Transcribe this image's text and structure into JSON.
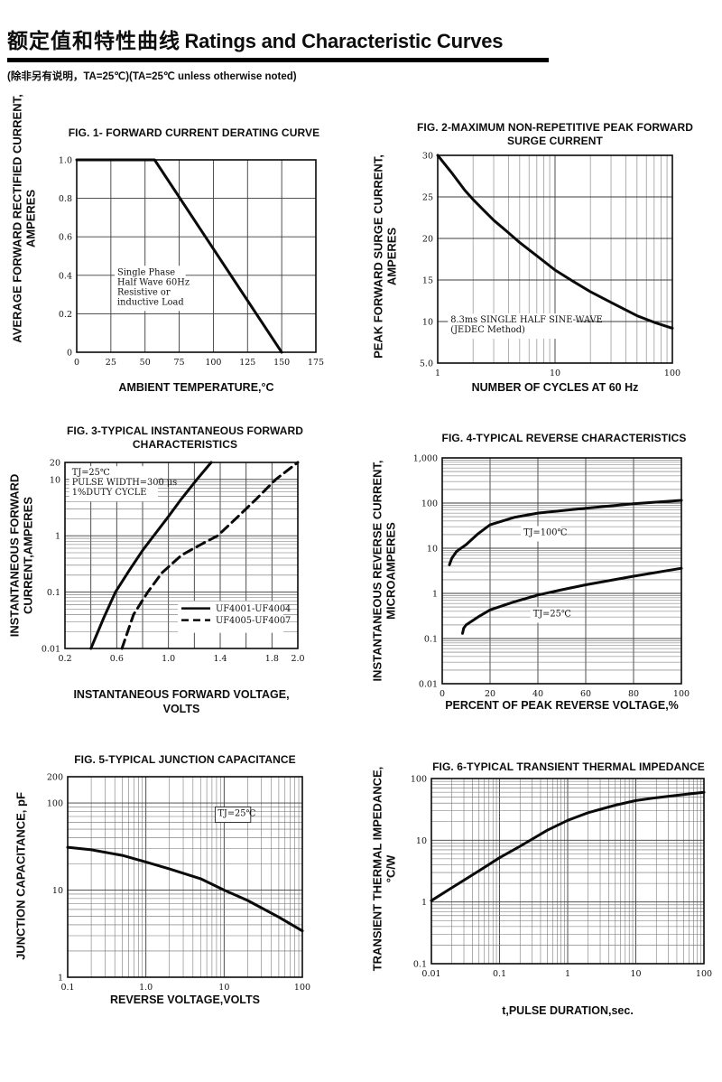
{
  "page": {
    "title_zh": "额定值和特性曲线",
    "title_en": "Ratings and Characteristic Curves",
    "subtitle": "(除非另有说明，TA=25℃)(TA=25℃  unless otherwise noted)"
  },
  "chart_data": [
    {
      "id": "fig1",
      "type": "line",
      "title": "FIG. 1- FORWARD CURRENT DERATING CURVE",
      "ylabel": "AVERAGE FORWARD RECTIFIED CURRENT,\nAMPERES",
      "xlabel": "AMBIENT TEMPERATURE,°C",
      "x": {
        "scale": "linear",
        "min": 0,
        "max": 175,
        "grid": [
          25,
          50,
          75,
          100,
          125,
          150
        ],
        "ticks": [
          {
            "v": 0,
            "label": "0"
          },
          {
            "v": 25,
            "label": "25"
          },
          {
            "v": 50,
            "label": "50"
          },
          {
            "v": 75,
            "label": "75"
          },
          {
            "v": 100,
            "label": "100"
          },
          {
            "v": 125,
            "label": "125"
          },
          {
            "v": 150,
            "label": "150"
          },
          {
            "v": 175,
            "label": "175"
          }
        ]
      },
      "y": {
        "scale": "linear",
        "min": 0,
        "max": 1.0,
        "grid": [
          0.2,
          0.4,
          0.6,
          0.8
        ],
        "ticks": [
          {
            "v": 0,
            "label": "0"
          },
          {
            "v": 0.2,
            "label": "0.2"
          },
          {
            "v": 0.4,
            "label": "0.4"
          },
          {
            "v": 0.6,
            "label": "0.6"
          },
          {
            "v": 0.8,
            "label": "0.8"
          },
          {
            "v": 1.0,
            "label": "1.0"
          }
        ]
      },
      "series": [
        {
          "name": "derating-curve",
          "style": "solid",
          "x": [
            0,
            57,
            150
          ],
          "y": [
            1.0,
            1.0,
            0
          ]
        }
      ],
      "annotations": [
        {
          "text": "Single Phase\nHalf Wave 60Hz\nResistive or\ninductive Load",
          "fx": 0.17,
          "fy": 0.56,
          "boxed": false
        }
      ]
    },
    {
      "id": "fig2",
      "type": "line",
      "title": "FIG. 2-MAXIMUM NON-REPETITIVE PEAK FORWARD\nSURGE CURRENT",
      "ylabel": "PEAK FORWARD SURGE CURRENT,\nAMPERES",
      "xlabel": "NUMBER OF CYCLES AT 60 Hz",
      "x": {
        "scale": "log",
        "min": 1,
        "max": 100,
        "ticks": [
          {
            "v": 1,
            "label": "1"
          },
          {
            "v": 10,
            "label": "10"
          },
          {
            "v": 100,
            "label": "100"
          }
        ]
      },
      "y": {
        "scale": "linear",
        "min": 5,
        "max": 30,
        "grid": [
          10,
          15,
          20,
          25
        ],
        "ticks": [
          {
            "v": 5,
            "label": "5.0"
          },
          {
            "v": 10,
            "label": "10"
          },
          {
            "v": 15,
            "label": "15"
          },
          {
            "v": 20,
            "label": "20"
          },
          {
            "v": 25,
            "label": "25"
          },
          {
            "v": 30,
            "label": "30"
          }
        ]
      },
      "series": [
        {
          "name": "surge-current",
          "style": "solid",
          "x": [
            1,
            1.3,
            1.7,
            2,
            2.5,
            3,
            4,
            5,
            7,
            10,
            14,
            20,
            30,
            50,
            70,
            100
          ],
          "y": [
            30,
            28,
            25.8,
            24.7,
            23.3,
            22.2,
            20.7,
            19.5,
            17.9,
            16.2,
            14.9,
            13.6,
            12.3,
            10.7,
            9.9,
            9.2
          ]
        }
      ],
      "annotations": [
        {
          "text": "8.3ms SINGLE HALF SINE-WAVE\n(JEDEC Method)",
          "fx": 0.055,
          "fy": 0.77,
          "boxed": false
        }
      ]
    },
    {
      "id": "fig3",
      "type": "line",
      "title": "FIG. 3-TYPICAL INSTANTANEOUS FORWARD\nCHARACTERISTICS",
      "ylabel": "INSTANTANEOUS FORWARD\nCURRENT,AMPERES",
      "xlabel": "INSTANTANEOUS FORWARD VOLTAGE,\nVOLTS",
      "x": {
        "scale": "linear",
        "min": 0.2,
        "max": 2.0,
        "grid": [
          0.4,
          0.6,
          0.8,
          1.0,
          1.2,
          1.4,
          1.6,
          1.8
        ],
        "ticks": [
          {
            "v": 0.2,
            "label": "0.2"
          },
          {
            "v": 0.6,
            "label": "0.6"
          },
          {
            "v": 1.0,
            "label": "1.0"
          },
          {
            "v": 1.4,
            "label": "1.4"
          },
          {
            "v": 1.8,
            "label": "1.8"
          },
          {
            "v": 2.0,
            "label": "2.0"
          }
        ]
      },
      "y": {
        "scale": "log",
        "min": 0.01,
        "max": 20,
        "ticks": [
          {
            "v": 0.01,
            "label": "0.01"
          },
          {
            "v": 0.1,
            "label": "0.1"
          },
          {
            "v": 1,
            "label": "1"
          },
          {
            "v": 10,
            "label": "10"
          },
          {
            "v": 20,
            "label": "20"
          }
        ]
      },
      "series": [
        {
          "name": "UF4001-UF4004",
          "style": "solid",
          "x": [
            0.4,
            0.5,
            0.59,
            0.7,
            0.8,
            0.9,
            1.0,
            1.1,
            1.22,
            1.33
          ],
          "y": [
            0.01,
            0.035,
            0.1,
            0.25,
            0.55,
            1.1,
            2.2,
            4.5,
            10,
            20
          ]
        },
        {
          "name": "UF4005-UF4007",
          "style": "dashed",
          "x": [
            0.64,
            0.73,
            0.84,
            0.95,
            1.1,
            1.25,
            1.38,
            1.52,
            1.68,
            1.83,
            2.0
          ],
          "y": [
            0.01,
            0.04,
            0.1,
            0.22,
            0.45,
            0.7,
            1.0,
            2.0,
            4.5,
            10,
            20
          ]
        }
      ],
      "annotations": [
        {
          "text": "TJ=25℃\nPULSE WIDTH=300 μs\n1%DUTY CYCLE",
          "fx": 0.03,
          "fy": 0.03,
          "boxed": false
        }
      ],
      "legend": {
        "fx": 0.5,
        "fy": 0.77,
        "items": [
          {
            "style": "solid",
            "label": "UF4001-UF4004"
          },
          {
            "style": "dashed",
            "label": "UF4005-UF4007"
          }
        ]
      }
    },
    {
      "id": "fig4",
      "type": "line",
      "title": "FIG. 4-TYPICAL REVERSE CHARACTERISTICS",
      "ylabel": "INSTANTANEOUS REVERSE CURRENT,\nMICROAMPERES",
      "xlabel": "PERCENT OF PEAK REVERSE VOLTAGE,%",
      "x": {
        "scale": "linear",
        "min": 0,
        "max": 100,
        "grid": [
          20,
          40,
          60,
          80
        ],
        "ticks": [
          {
            "v": 0,
            "label": "0"
          },
          {
            "v": 20,
            "label": "20"
          },
          {
            "v": 40,
            "label": "40"
          },
          {
            "v": 60,
            "label": "60"
          },
          {
            "v": 80,
            "label": "80"
          },
          {
            "v": 100,
            "label": "100"
          }
        ]
      },
      "y": {
        "scale": "log",
        "min": 0.01,
        "max": 1000,
        "ticks": [
          {
            "v": 0.01,
            "label": "0.01"
          },
          {
            "v": 0.1,
            "label": "0.1"
          },
          {
            "v": 1,
            "label": "1"
          },
          {
            "v": 10,
            "label": "10"
          },
          {
            "v": 100,
            "label": "100"
          },
          {
            "v": 1000,
            "label": "1,000"
          }
        ]
      },
      "series": [
        {
          "name": "TJ=100C",
          "style": "solid",
          "x": [
            3,
            4,
            6,
            10,
            15,
            20,
            30,
            40,
            60,
            80,
            100
          ],
          "y": [
            4.3,
            6,
            8.5,
            12,
            21,
            33,
            48,
            60,
            77,
            97,
            115
          ]
        },
        {
          "name": "TJ=25C",
          "style": "solid",
          "x": [
            8.5,
            9,
            10,
            15,
            20,
            30,
            40,
            50,
            60,
            80,
            100
          ],
          "y": [
            0.13,
            0.17,
            0.2,
            0.3,
            0.43,
            0.65,
            0.92,
            1.2,
            1.55,
            2.4,
            3.6
          ]
        }
      ],
      "annotations": [
        {
          "text": "TJ=100℃",
          "fx": 0.34,
          "fy": 0.31,
          "boxed": false
        },
        {
          "text": "TJ=25℃",
          "fx": 0.38,
          "fy": 0.67,
          "boxed": false
        }
      ]
    },
    {
      "id": "fig5",
      "type": "line",
      "title": "FIG. 5-TYPICAL JUNCTION CAPACITANCE",
      "ylabel": "JUNCTION CAPACITANCE, pF",
      "xlabel": "REVERSE VOLTAGE,VOLTS",
      "x": {
        "scale": "log",
        "min": 0.1,
        "max": 100,
        "ticks": [
          {
            "v": 0.1,
            "label": "0.1"
          },
          {
            "v": 1,
            "label": "1.0"
          },
          {
            "v": 10,
            "label": "10"
          },
          {
            "v": 100,
            "label": "100"
          }
        ]
      },
      "y": {
        "scale": "log",
        "min": 1,
        "max": 200,
        "ticks": [
          {
            "v": 1,
            "label": "1"
          },
          {
            "v": 10,
            "label": "10"
          },
          {
            "v": 100,
            "label": "100"
          },
          {
            "v": 200,
            "label": "200"
          }
        ]
      },
      "series": [
        {
          "name": "junction-capacitance",
          "style": "solid",
          "x": [
            0.1,
            0.2,
            0.5,
            1,
            2,
            5,
            10,
            20,
            50,
            100
          ],
          "y": [
            31,
            29,
            25,
            21,
            17.5,
            13.5,
            10,
            7.6,
            4.9,
            3.4
          ]
        }
      ],
      "annotations": [
        {
          "text": "TJ=25℃",
          "fx": 0.64,
          "fy": 0.16,
          "boxed": true
        }
      ]
    },
    {
      "id": "fig6",
      "type": "line",
      "title": "FIG. 6-TYPICAL TRANSIENT THERMAL IMPEDANCE",
      "ylabel": "TRANSIENT THERMAL IMPEDANCE,\n°C/W",
      "xlabel": "t,PULSE DURATION,sec.",
      "x": {
        "scale": "log",
        "min": 0.01,
        "max": 100,
        "ticks": [
          {
            "v": 0.01,
            "label": "0.01"
          },
          {
            "v": 0.1,
            "label": "0.1"
          },
          {
            "v": 1,
            "label": "1"
          },
          {
            "v": 10,
            "label": "10"
          },
          {
            "v": 100,
            "label": "100"
          }
        ]
      },
      "y": {
        "scale": "log",
        "min": 0.1,
        "max": 100,
        "ticks": [
          {
            "v": 0.1,
            "label": "0.1"
          },
          {
            "v": 1,
            "label": "1"
          },
          {
            "v": 10,
            "label": "10"
          },
          {
            "v": 100,
            "label": "100"
          }
        ]
      },
      "series": [
        {
          "name": "thermal-impedance",
          "style": "solid",
          "x": [
            0.01,
            0.02,
            0.05,
            0.1,
            0.2,
            0.5,
            1,
            2,
            5,
            10,
            20,
            50,
            100
          ],
          "y": [
            1.05,
            1.7,
            3.2,
            5.2,
            8,
            14.5,
            21,
            28,
            37,
            44,
            49,
            55,
            60
          ]
        }
      ],
      "annotations": []
    }
  ]
}
